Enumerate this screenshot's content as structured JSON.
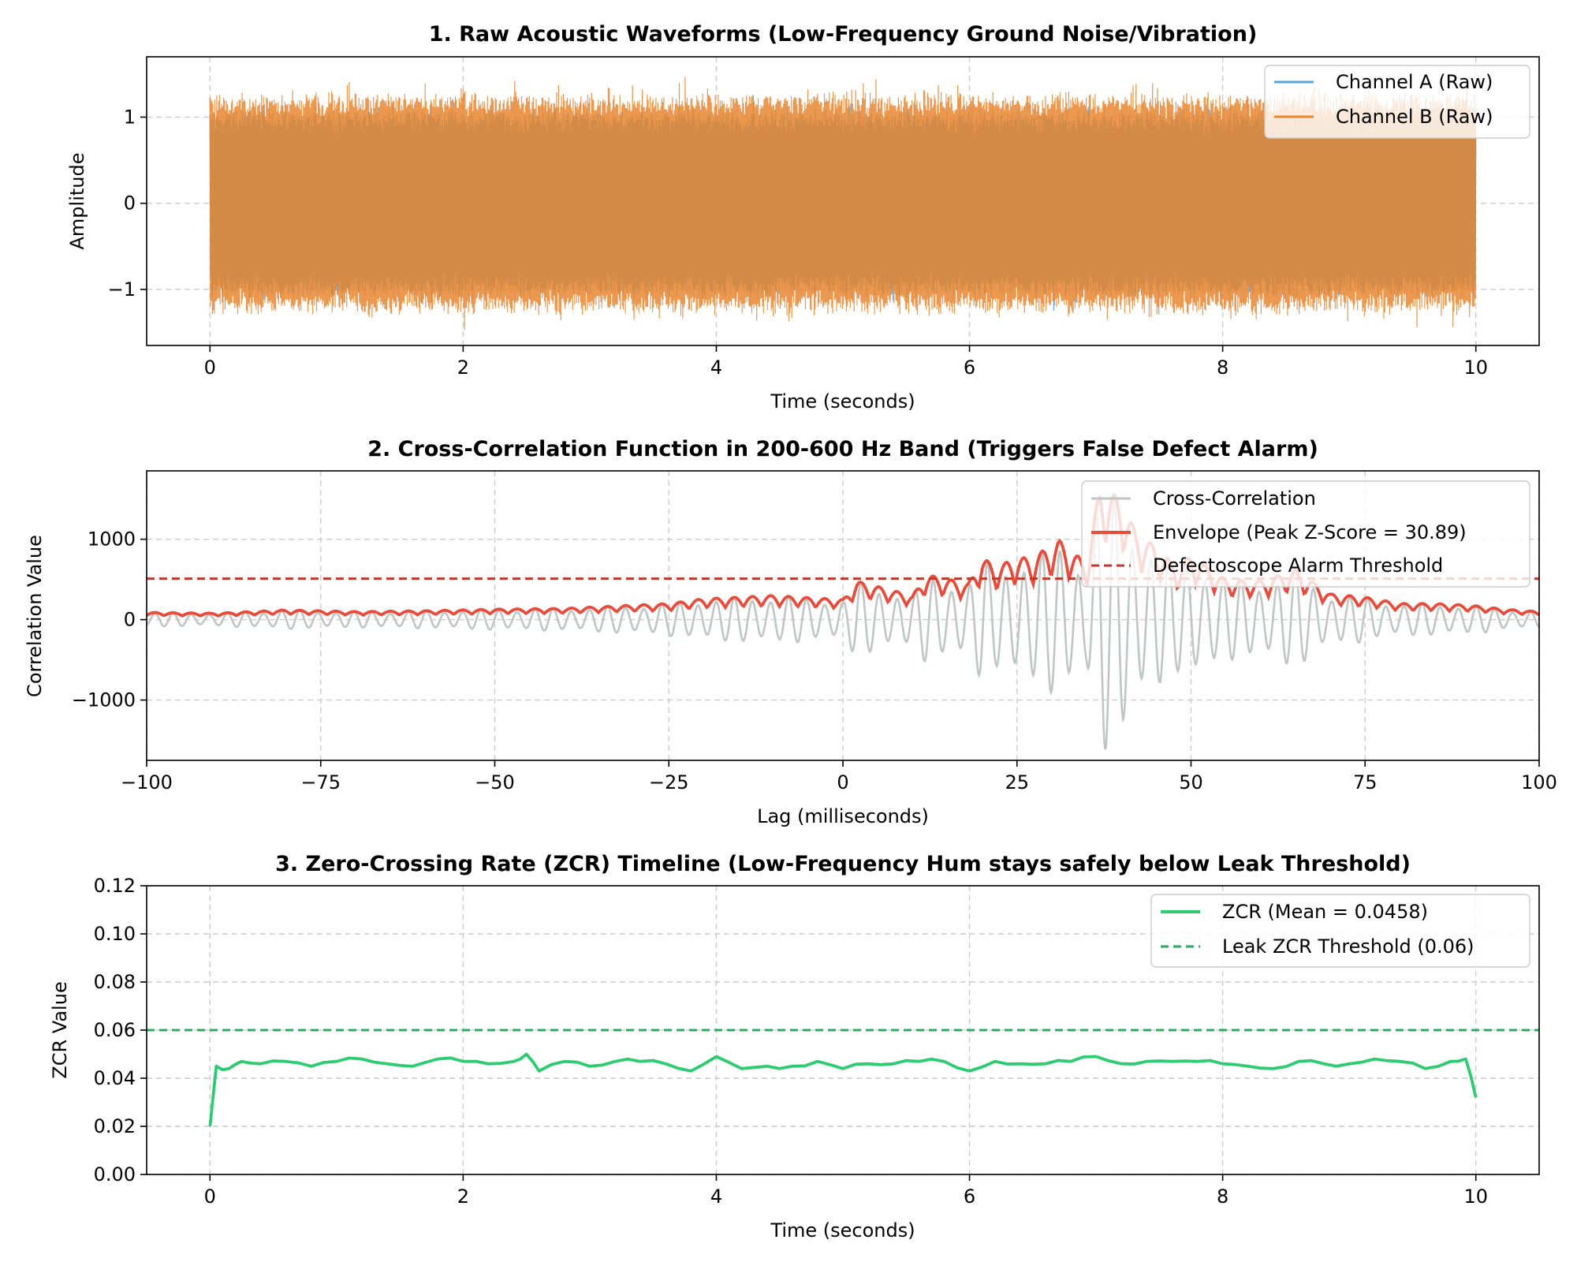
{
  "chart_data": [
    {
      "type": "line",
      "title": "1. Raw Acoustic Waveforms (Low-Frequency Ground Noise/Vibration)",
      "xlabel": "Time (seconds)",
      "ylabel": "Amplitude",
      "xlim": [
        -0.5,
        10.5
      ],
      "ylim": [
        -1.65,
        1.7
      ],
      "xticks": [
        0,
        2,
        4,
        6,
        8,
        10
      ],
      "xtick_labels": [
        "0",
        "2",
        "4",
        "6",
        "8",
        "10"
      ],
      "yticks": [
        -1,
        0,
        1
      ],
      "ytick_labels": [
        "−1",
        "0",
        "1"
      ],
      "grid": true,
      "legend_position": "top-right",
      "series": [
        {
          "name": "Channel A (Raw)",
          "color": "#5da5da",
          "x_range": [
            0,
            10
          ],
          "amplitude_envelope": [
            -1.3,
            1.3
          ]
        },
        {
          "name": "Channel B (Raw)",
          "color": "#e8852e",
          "x_range": [
            0,
            10
          ],
          "amplitude_envelope": [
            -1.5,
            1.55
          ]
        }
      ]
    },
    {
      "type": "line",
      "title": "2. Cross-Correlation Function in 200-600 Hz Band (Triggers False Defect Alarm)",
      "xlabel": "Lag (milliseconds)",
      "ylabel": "Correlation Value",
      "xlim": [
        -100,
        100
      ],
      "ylim": [
        -1750,
        1850
      ],
      "xticks": [
        -100,
        -75,
        -50,
        -25,
        0,
        25,
        50,
        75,
        100
      ],
      "xtick_labels": [
        "−100",
        "−75",
        "−50",
        "−25",
        "0",
        "25",
        "50",
        "75",
        "100"
      ],
      "yticks": [
        -1000,
        0,
        1000
      ],
      "ytick_labels": [
        "−1000",
        "0",
        "1000"
      ],
      "grid": true,
      "legend_position": "top-right",
      "series": [
        {
          "name": "Cross-Correlation",
          "color": "#bfc6c4"
        },
        {
          "name": "Envelope (Peak Z-Score = 30.89)",
          "color": "#e74c3c",
          "peaks": {
            "x": [
              -100,
              -90,
              -80,
              -70,
              -60,
              -50,
              -40,
              -30,
              -25,
              -20,
              -10,
              0,
              2,
              10,
              12,
              18,
              20,
              22,
              25,
              27,
              31,
              35,
              37,
              38,
              40,
              42,
              45,
              48,
              50,
              55,
              60,
              65,
              70,
              75,
              80,
              85,
              90,
              95,
              100
            ],
            "y": [
              90,
              80,
              120,
              100,
              110,
              130,
              140,
              180,
              200,
              260,
              300,
              250,
              480,
              300,
              560,
              450,
              780,
              650,
              780,
              760,
              990,
              700,
              1700,
              1600,
              1500,
              1100,
              900,
              650,
              800,
              500,
              480,
              620,
              320,
              280,
              200,
              200,
              180,
              130,
              100
            ]
          }
        },
        {
          "name": "Defectoscope Alarm Threshold",
          "color": "#c0392b",
          "value": 510
        }
      ]
    },
    {
      "type": "line",
      "title": "3. Zero-Crossing Rate (ZCR) Timeline (Low-Frequency Hum stays safely below Leak Threshold)",
      "xlabel": "Time (seconds)",
      "ylabel": "ZCR Value",
      "xlim": [
        -0.5,
        10.5
      ],
      "ylim": [
        0,
        0.12
      ],
      "xticks": [
        0,
        2,
        4,
        6,
        8,
        10
      ],
      "xtick_labels": [
        "0",
        "2",
        "4",
        "6",
        "8",
        "10"
      ],
      "yticks": [
        0,
        0.02,
        0.04,
        0.06,
        0.08,
        0.1,
        0.12
      ],
      "ytick_labels": [
        "0.00",
        "0.02",
        "0.04",
        "0.06",
        "0.08",
        "0.10",
        "0.12"
      ],
      "grid": true,
      "legend_position": "top-right",
      "series": [
        {
          "name": "ZCR (Mean = 0.0458)",
          "color": "#2ecc71",
          "x": [
            0,
            0.05,
            0.15,
            0.25,
            0.4,
            0.6,
            0.8,
            1.0,
            1.2,
            1.4,
            1.6,
            1.8,
            2.0,
            2.2,
            2.4,
            2.5,
            2.6,
            2.8,
            3.0,
            3.2,
            3.4,
            3.6,
            3.8,
            4.0,
            4.2,
            4.4,
            4.6,
            4.8,
            5.0,
            5.2,
            5.4,
            5.6,
            5.8,
            6.0,
            6.2,
            6.4,
            6.6,
            6.8,
            7.0,
            7.2,
            7.4,
            7.6,
            7.8,
            8.0,
            8.2,
            8.4,
            8.6,
            8.8,
            9.0,
            9.2,
            9.4,
            9.6,
            9.8,
            9.92,
            10.0
          ],
          "y": [
            0.02,
            0.045,
            0.044,
            0.047,
            0.046,
            0.047,
            0.045,
            0.047,
            0.048,
            0.046,
            0.045,
            0.048,
            0.047,
            0.046,
            0.047,
            0.05,
            0.043,
            0.047,
            0.045,
            0.047,
            0.047,
            0.046,
            0.043,
            0.049,
            0.044,
            0.045,
            0.045,
            0.047,
            0.044,
            0.046,
            0.046,
            0.047,
            0.047,
            0.043,
            0.047,
            0.046,
            0.046,
            0.047,
            0.049,
            0.046,
            0.047,
            0.047,
            0.047,
            0.046,
            0.045,
            0.044,
            0.047,
            0.046,
            0.046,
            0.048,
            0.047,
            0.044,
            0.047,
            0.048,
            0.032
          ]
        },
        {
          "name": "Leak ZCR Threshold (0.06)",
          "color": "#27ae60",
          "value": 0.06
        }
      ]
    }
  ]
}
